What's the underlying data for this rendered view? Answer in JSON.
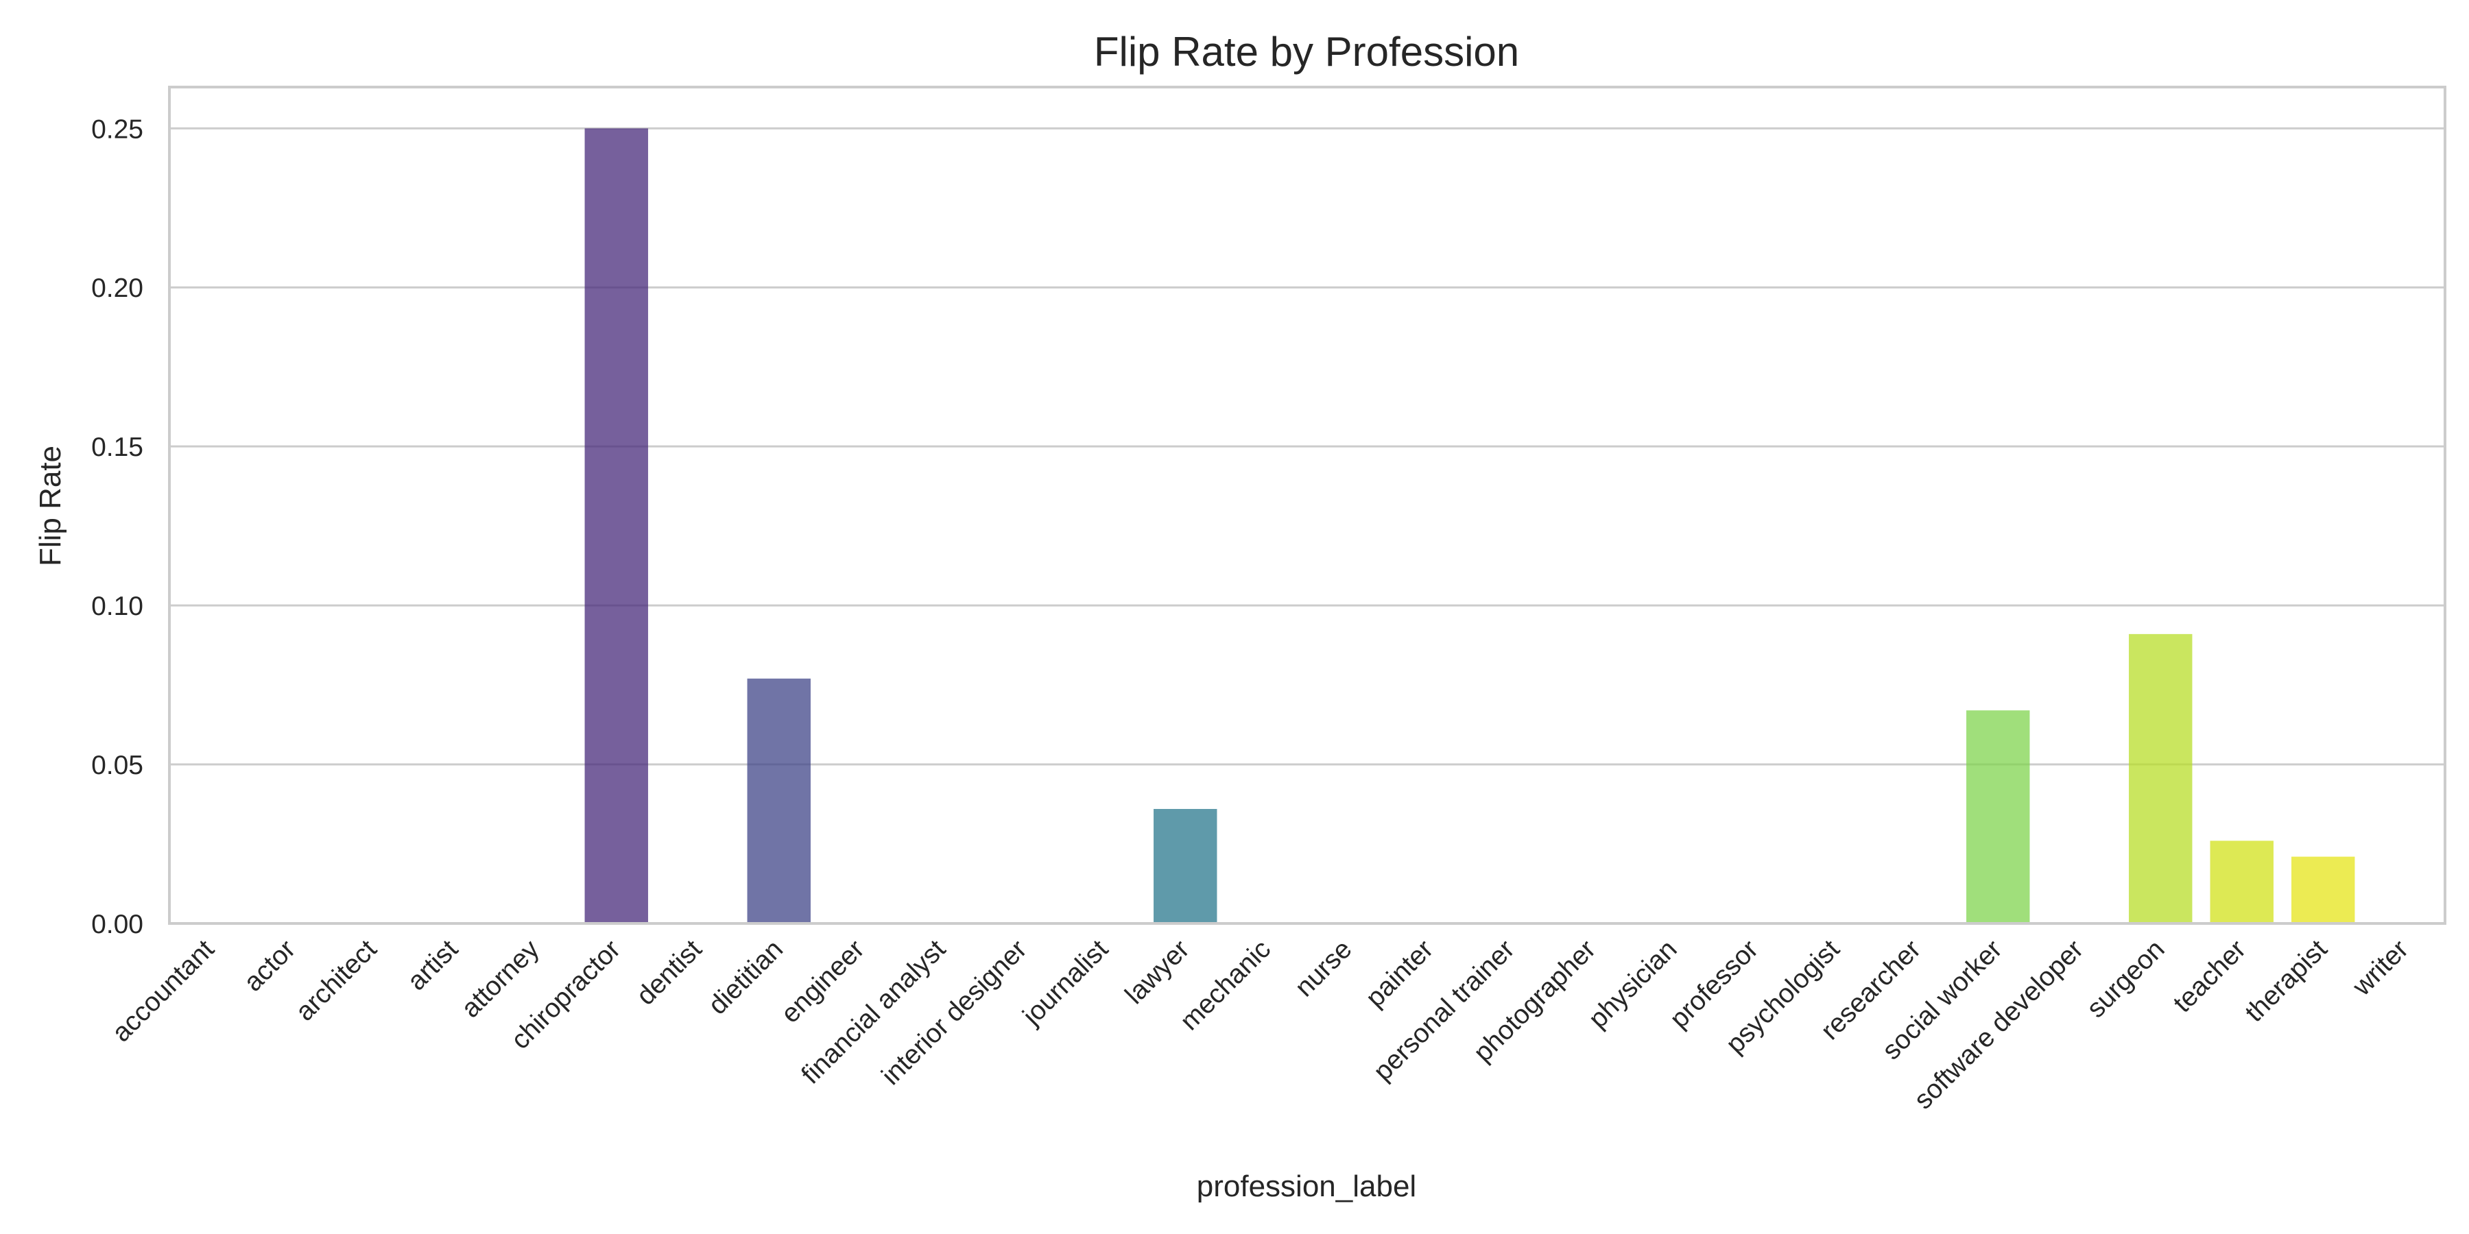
{
  "chart_data": {
    "type": "bar",
    "title": "Flip Rate by Profession",
    "xlabel": "profession_label",
    "ylabel": "Flip Rate",
    "ylim": [
      0,
      0.263
    ],
    "yticks": [
      0.0,
      0.05,
      0.1,
      0.15,
      0.2,
      0.25
    ],
    "ytick_labels": [
      "0.00",
      "0.05",
      "0.10",
      "0.15",
      "0.20",
      "0.25"
    ],
    "grid": "horizontal",
    "categories": [
      "accountant",
      "actor",
      "architect",
      "artist",
      "attorney",
      "chiropractor",
      "dentist",
      "dietitian",
      "engineer",
      "financial analyst",
      "interior designer",
      "journalist",
      "lawyer",
      "mechanic",
      "nurse",
      "painter",
      "personal trainer",
      "photographer",
      "physician",
      "professor",
      "psychologist",
      "researcher",
      "social worker",
      "software developer",
      "surgeon",
      "teacher",
      "therapist",
      "writer"
    ],
    "values": [
      0,
      0,
      0,
      0,
      0,
      0.25,
      0,
      0.077,
      0,
      0,
      0,
      0,
      0.036,
      0,
      0,
      0,
      0,
      0,
      0,
      0,
      0,
      0,
      0.067,
      0,
      0.091,
      0.026,
      0.021,
      0
    ],
    "colors": [
      "#46085c",
      "#470e61",
      "#481668",
      "#481d6f",
      "#472575",
      "#482b7b",
      "#443a83",
      "#404688",
      "#3b518b",
      "#365c8d",
      "#32658e",
      "#2e6f8e",
      "#2a788e",
      "#26828e",
      "#228b8d",
      "#1f958b",
      "#1f9e89",
      "#24aa83",
      "#2fb47c",
      "#3fbc73",
      "#54c568",
      "#69cd5b",
      "#80d44f",
      "#9bd93c",
      "#b8de29",
      "#d2e21b",
      "#e5e419",
      "#f4e61e"
    ]
  }
}
